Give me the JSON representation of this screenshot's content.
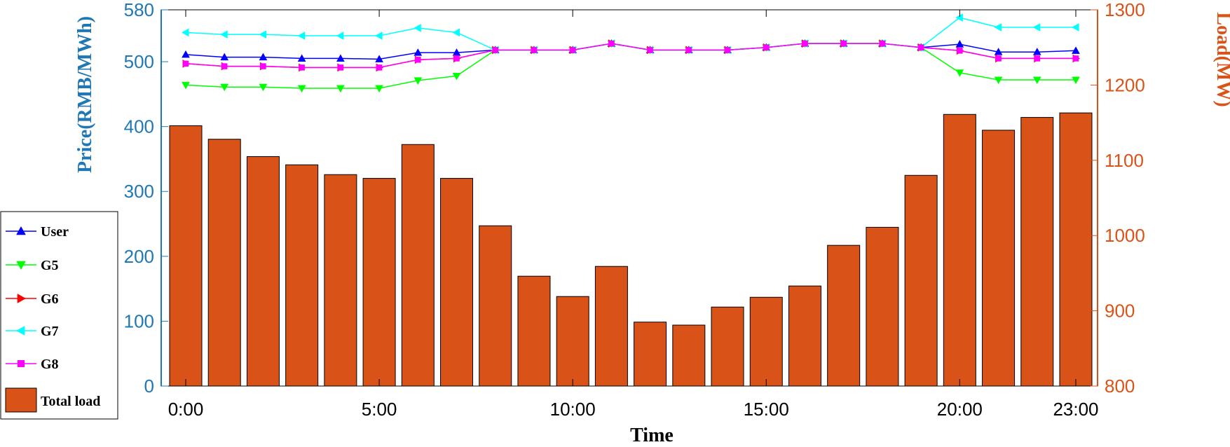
{
  "chart_data": {
    "type": "bar+line",
    "x": [
      "0:00",
      "1:00",
      "2:00",
      "3:00",
      "4:00",
      "5:00",
      "6:00",
      "7:00",
      "8:00",
      "9:00",
      "10:00",
      "11:00",
      "12:00",
      "13:00",
      "14:00",
      "15:00",
      "16:00",
      "17:00",
      "18:00",
      "19:00",
      "20:00",
      "21:00",
      "22:00",
      "23:00"
    ],
    "x_tick_labels": [
      "0:00",
      "5:00",
      "10:00",
      "15:00",
      "20:00",
      "23:00"
    ],
    "xlabel": "Time",
    "ylabel_left": "Price(RMB/MWh)",
    "ylabel_right": "Load(MW)",
    "ylim_left": [
      0,
      580
    ],
    "ylim_right": [
      800,
      1300
    ],
    "yticks_left": [
      "0",
      "100",
      "200",
      "300",
      "400",
      "500",
      "580"
    ],
    "yticks_right": [
      "800",
      "900",
      "1000",
      "1100",
      "1200",
      "1300"
    ],
    "grid": false,
    "legend_position": "left",
    "colors": {
      "left_axis": "#1f77b4",
      "right_axis": "#d95319",
      "bar": "#d95319"
    },
    "bars": {
      "name": "Total load",
      "axis": "right",
      "values": [
        1146,
        1128,
        1105,
        1094,
        1081,
        1076,
        1121,
        1076,
        1013,
        946,
        919,
        959,
        885,
        881,
        905,
        918,
        933,
        987,
        1011,
        1080,
        1161,
        1140,
        1157,
        1163
      ]
    },
    "series": [
      {
        "name": "User",
        "color": "#0000ff",
        "marker": "triangle-up",
        "values": [
          511,
          507,
          507,
          505,
          505,
          504,
          514,
          514,
          518,
          518,
          518,
          528,
          518,
          518,
          518,
          522,
          528,
          528,
          528,
          522,
          527,
          515,
          515,
          517
        ]
      },
      {
        "name": "G5",
        "color": "#00ff00",
        "marker": "triangle-down",
        "values": [
          464,
          461,
          461,
          459,
          459,
          459,
          471,
          478,
          518,
          518,
          518,
          528,
          518,
          518,
          518,
          522,
          528,
          528,
          528,
          522,
          483,
          472,
          472,
          472
        ]
      },
      {
        "name": "G6",
        "color": "#ff0000",
        "marker": "triangle-right",
        "values": [
          497,
          493,
          493,
          491,
          491,
          491,
          503,
          505,
          518,
          518,
          518,
          528,
          518,
          518,
          518,
          522,
          528,
          528,
          528,
          522,
          517,
          505,
          505,
          505
        ]
      },
      {
        "name": "G7",
        "color": "#00ffff",
        "marker": "triangle-left",
        "values": [
          545,
          542,
          542,
          540,
          540,
          540,
          552,
          545,
          518,
          518,
          518,
          528,
          518,
          518,
          518,
          522,
          528,
          528,
          528,
          522,
          568,
          553,
          553,
          553
        ]
      },
      {
        "name": "G8",
        "color": "#ff00ff",
        "marker": "square",
        "values": [
          497,
          493,
          493,
          491,
          491,
          491,
          503,
          505,
          518,
          518,
          518,
          528,
          518,
          518,
          518,
          522,
          528,
          528,
          528,
          522,
          517,
          505,
          505,
          505
        ]
      }
    ]
  }
}
